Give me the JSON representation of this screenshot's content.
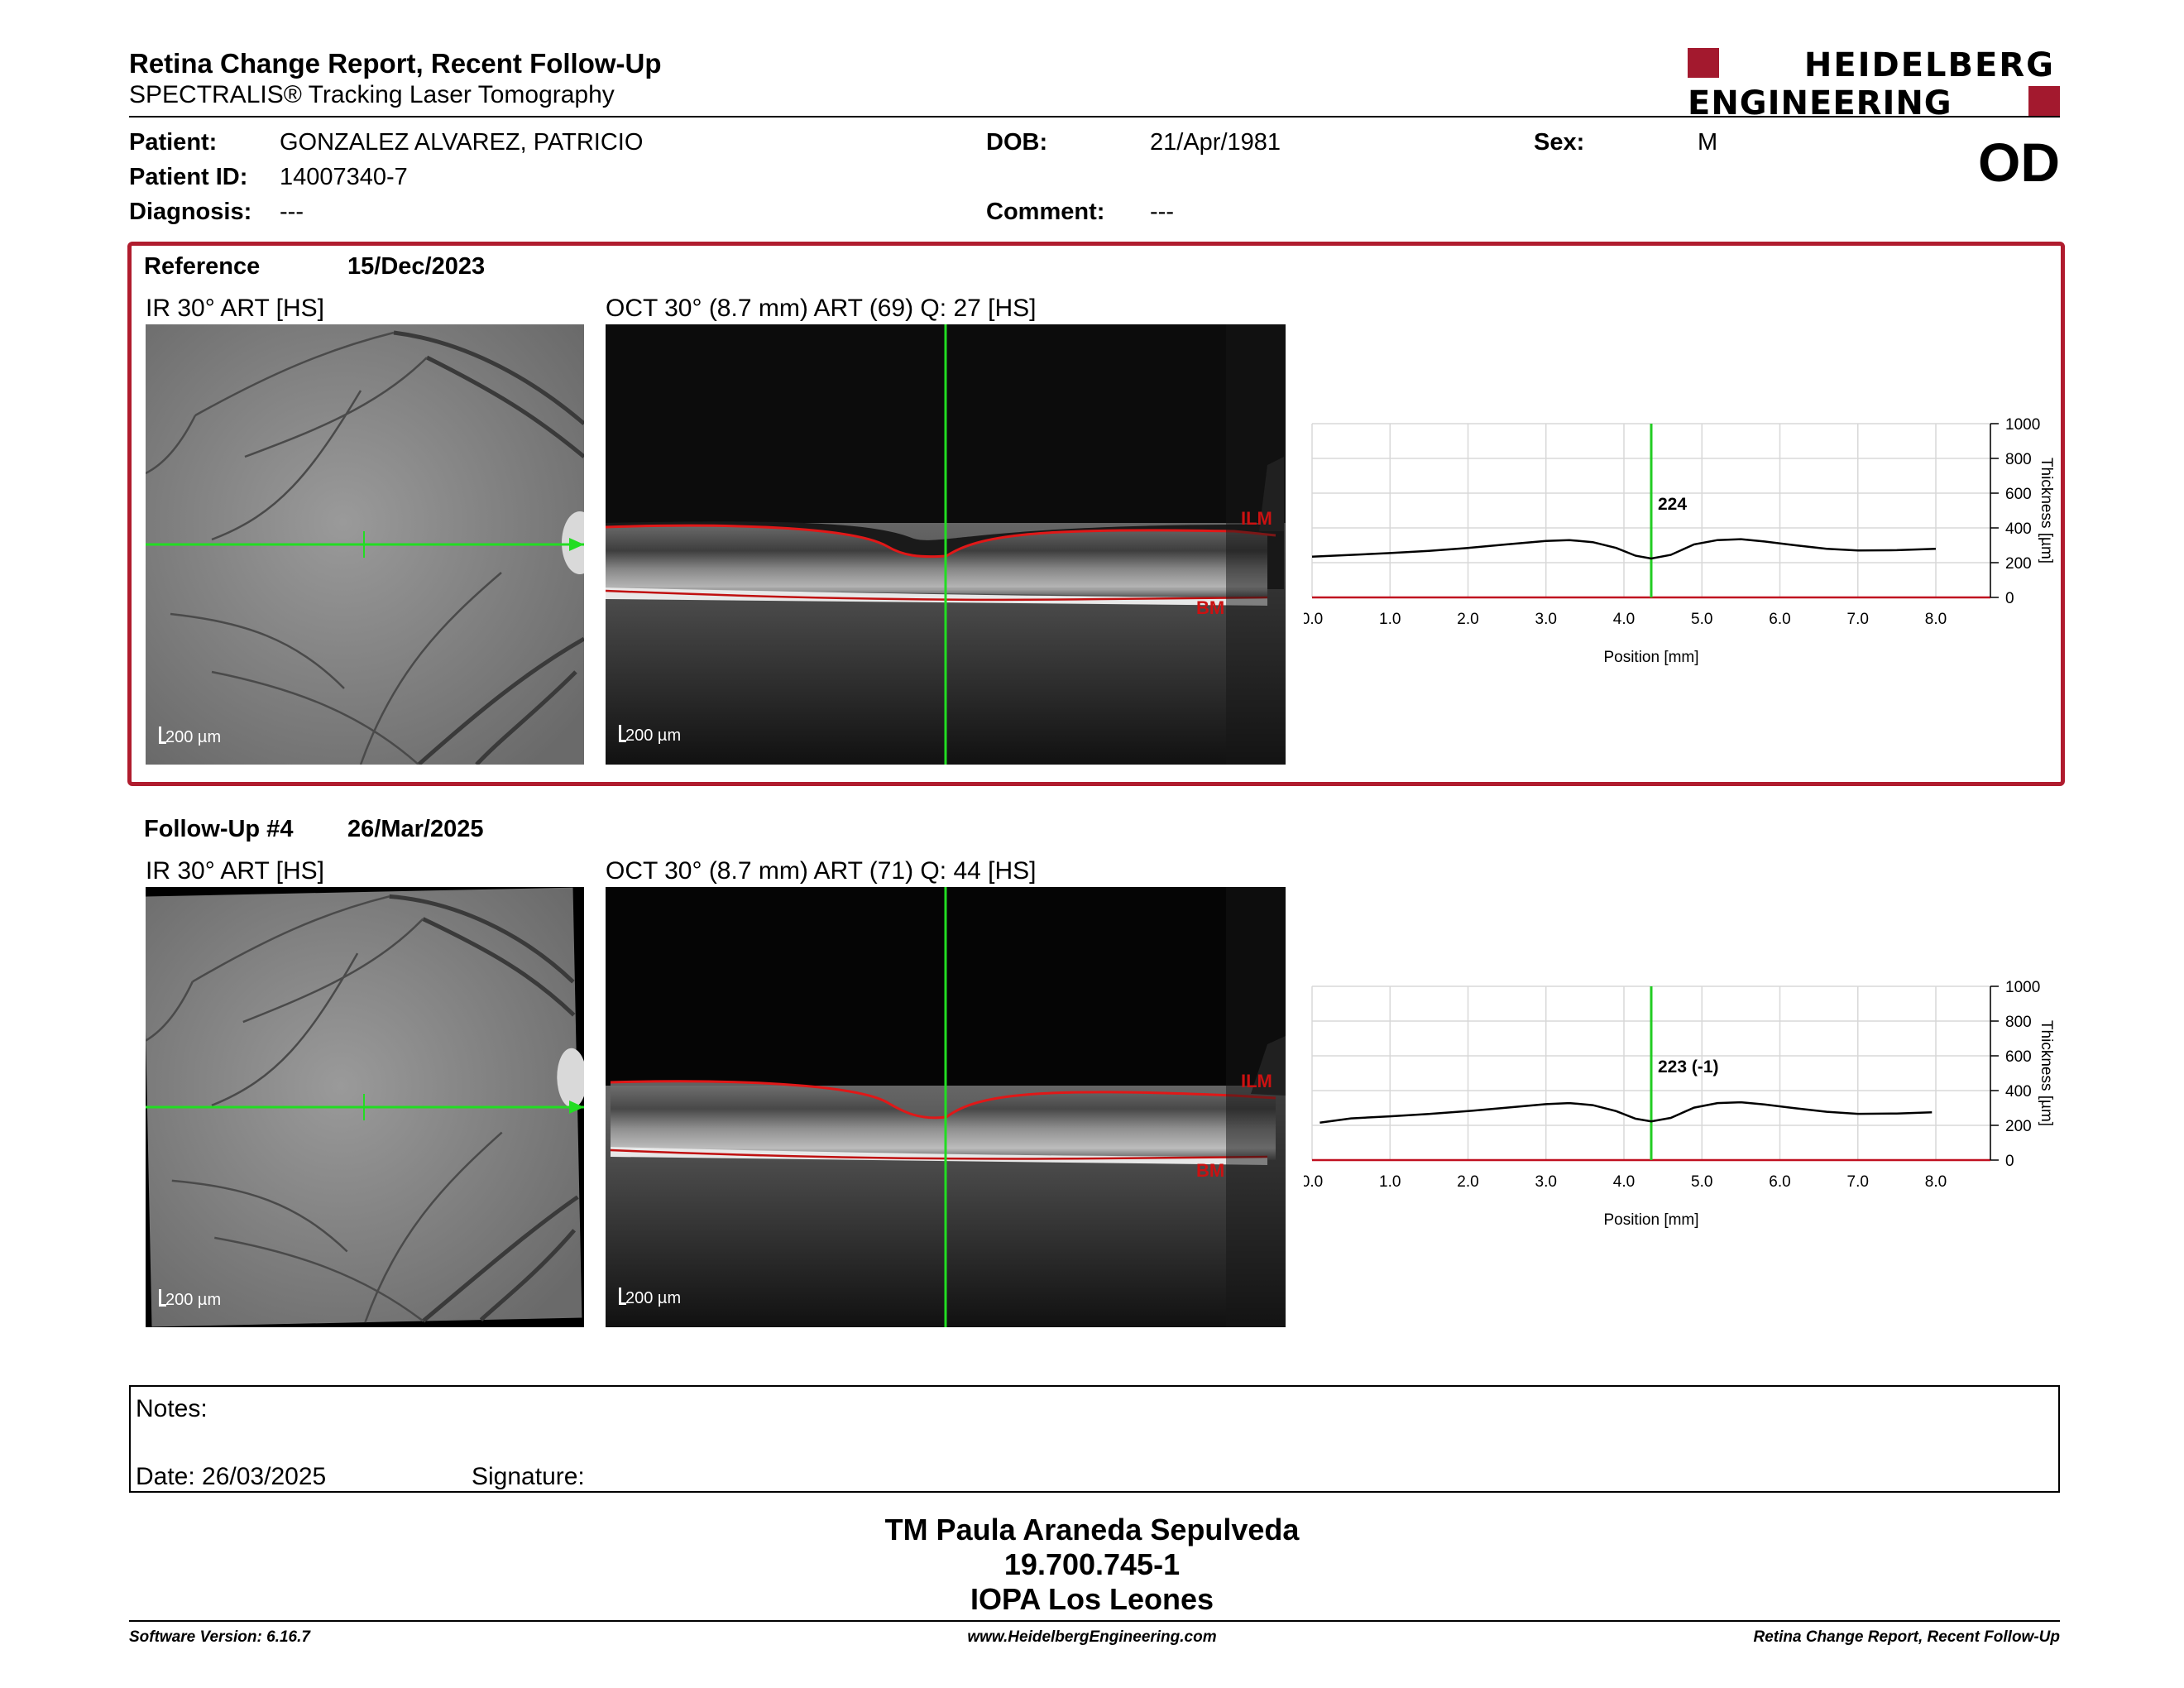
{
  "report": {
    "title": "Retina Change Report, Recent Follow-Up",
    "subtitle": "SPECTRALIS® Tracking Laser Tomography",
    "logo_line1": "HEIDELBERG",
    "logo_line2": "ENGINEERING",
    "eye": "OD"
  },
  "patient": {
    "patient_label": "Patient:",
    "patient_value": "GONZALEZ ALVAREZ, PATRICIO",
    "id_label": "Patient ID:",
    "id_value": "14007340-7",
    "diagnosis_label": "Diagnosis:",
    "diagnosis_value": "---",
    "dob_label": "DOB:",
    "dob_value": "21/Apr/1981",
    "comment_label": "Comment:",
    "comment_value": "---",
    "sex_label": "Sex:",
    "sex_value": "M"
  },
  "reference": {
    "label": "Reference",
    "date": "15/Dec/2023",
    "ir_label": "IR 30° ART [HS]",
    "oct_label": "OCT 30° (8.7 mm) ART (69) Q: 27 [HS]",
    "ilm": "ILM",
    "bm": "BM",
    "scale_ir": "200 µm",
    "scale_oct": "200 µm",
    "thickness_at_cursor": "224"
  },
  "followup": {
    "label": "Follow-Up #4",
    "date": "26/Mar/2025",
    "ir_label": "IR 30° ART [HS]",
    "oct_label": "OCT 30° (8.7 mm) ART (71) Q: 44 [HS]",
    "ilm": "ILM",
    "bm": "BM",
    "scale_ir": "200 µm",
    "scale_oct": "200 µm",
    "thickness_at_cursor": "223 (-1)"
  },
  "chart_data": [
    {
      "type": "line",
      "xlabel": "Position [mm]",
      "ylabel": "Thickness [µm]",
      "xlim": [
        0,
        8.7
      ],
      "ylim": [
        0,
        1000
      ],
      "xticks": [
        "0.0",
        "1.0",
        "2.0",
        "3.0",
        "4.0",
        "5.0",
        "6.0",
        "7.0",
        "8.0"
      ],
      "yticks": [
        "0",
        "200",
        "400",
        "600",
        "800",
        "1000"
      ],
      "cursor_x": 4.35,
      "cursor_label": "224",
      "grid": true,
      "x": [
        0,
        0.5,
        1,
        1.5,
        2,
        2.5,
        3,
        3.3,
        3.6,
        3.9,
        4.15,
        4.35,
        4.6,
        4.9,
        5.2,
        5.5,
        5.8,
        6.2,
        6.6,
        7,
        7.5,
        8
      ],
      "y": [
        235,
        245,
        255,
        268,
        285,
        305,
        325,
        330,
        318,
        285,
        240,
        224,
        245,
        305,
        330,
        335,
        322,
        300,
        280,
        270,
        272,
        280
      ]
    },
    {
      "type": "line",
      "xlabel": "Position [mm]",
      "ylabel": "Thickness [µm]",
      "xlim": [
        0,
        8.7
      ],
      "ylim": [
        0,
        1000
      ],
      "xticks": [
        "0.0",
        "1.0",
        "2.0",
        "3.0",
        "4.0",
        "5.0",
        "6.0",
        "7.0",
        "8.0"
      ],
      "yticks": [
        "0",
        "200",
        "400",
        "600",
        "800",
        "1000"
      ],
      "cursor_x": 4.35,
      "cursor_label": "223 (-1)",
      "grid": true,
      "x": [
        0.1,
        0.5,
        1,
        1.5,
        2,
        2.5,
        3,
        3.3,
        3.6,
        3.9,
        4.15,
        4.35,
        4.6,
        4.9,
        5.2,
        5.5,
        5.8,
        6.2,
        6.6,
        7,
        7.5,
        7.95
      ],
      "y": [
        215,
        240,
        252,
        265,
        282,
        302,
        322,
        328,
        316,
        282,
        238,
        223,
        243,
        302,
        328,
        333,
        320,
        298,
        278,
        266,
        268,
        275
      ]
    }
  ],
  "notes": {
    "label": "Notes:",
    "date": "Date: 26/03/2025",
    "signature": "Signature:"
  },
  "operator": {
    "name": "TM Paula Araneda Sepulveda",
    "id": "19.700.745-1",
    "org": "IOPA Los Leones"
  },
  "footer": {
    "software": "Software Version: 6.16.7",
    "website": "www.HeidelbergEngineering.com",
    "report": "Retina Change Report, Recent Follow-Up"
  }
}
